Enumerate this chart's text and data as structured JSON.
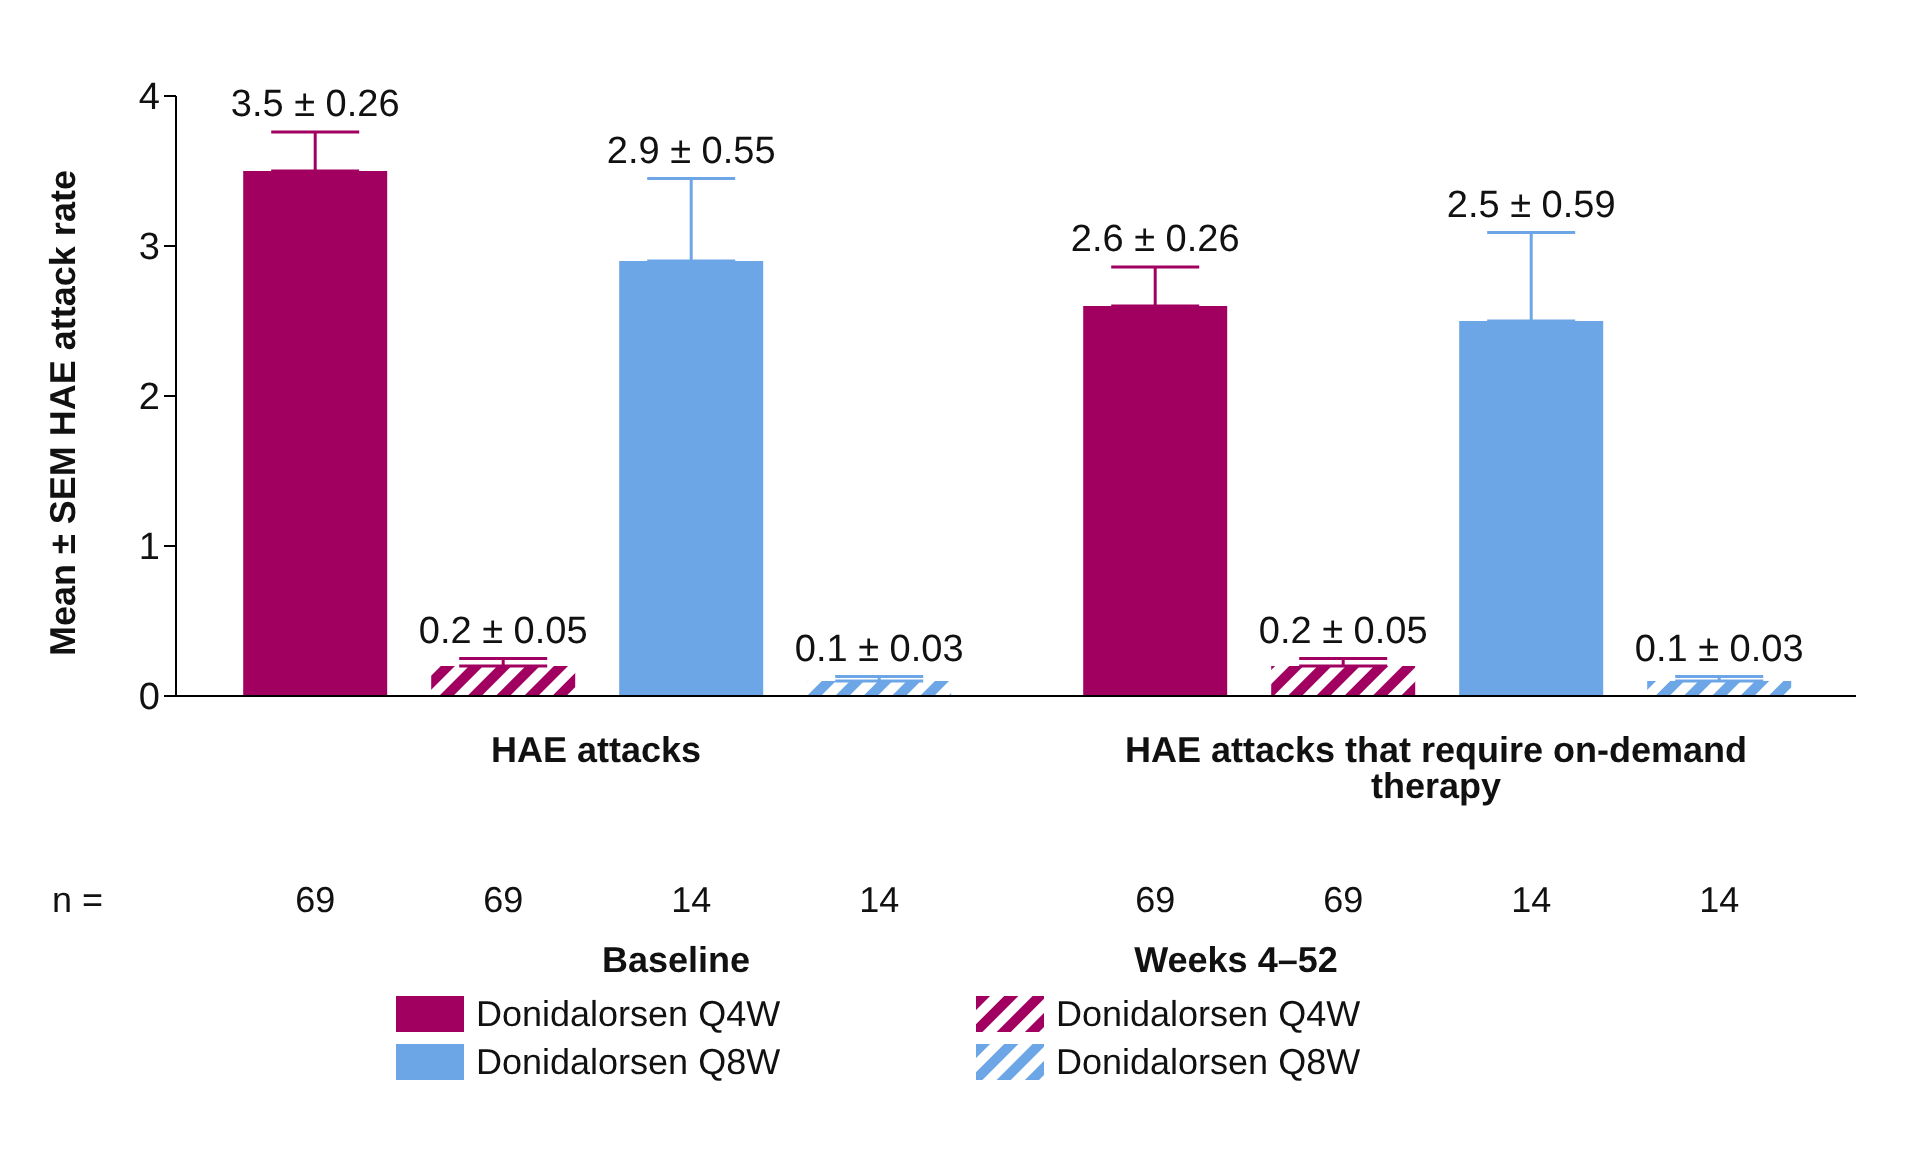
{
  "chart_data": {
    "type": "bar",
    "ylabel": "Mean ± SEM HAE attack rate",
    "categories": [
      "HAE attacks",
      "HAE attacks that require on-demand therapy"
    ],
    "series": [
      {
        "name": "Donidalorsen Q4W",
        "color": "#a10060",
        "values": [
          3.5,
          2.6
        ],
        "errors": [
          [
            3.5,
            3.76
          ],
          [
            2.6,
            2.86
          ]
        ],
        "value_labels": [
          "3.5 ± 0.26",
          "2.6 ± 0.26"
        ]
      },
      {
        "name": "Donidalorsen Q4W",
        "color": "#a10060",
        "values": [
          0.2,
          0.2
        ],
        "errors": [
          [
            0.2,
            0.25
          ],
          [
            0.2,
            0.25
          ]
        ],
        "value_labels": [
          "0.2 ± 0.05",
          "0.2 ± 0.05"
        ]
      },
      {
        "name": "Donidalorsen Q8W",
        "color": "#6ca6e6",
        "values": [
          2.9,
          2.5
        ],
        "errors": [
          [
            2.9,
            3.45
          ],
          [
            2.5,
            3.09
          ]
        ],
        "value_labels": [
          "2.9 ± 0.55",
          "2.5 ± 0.59"
        ]
      },
      {
        "name": "Donidalorsen Q8W",
        "color": "#6ca6e6",
        "values": [
          0.1,
          0.1
        ],
        "errors": [
          [
            0.1,
            0.13
          ],
          [
            0.1,
            0.13
          ]
        ],
        "value_labels": [
          "0.1 ± 0.03",
          "0.1 ± 0.03"
        ]
      }
    ],
    "ylim": [
      0,
      4
    ],
    "yticks": [
      0,
      1,
      2,
      3,
      4
    ],
    "legend": "bottom",
    "annotations": [
      "Baseline",
      "Weeks 4–52",
      "n =",
      "69",
      "69",
      "14",
      "14",
      "69",
      "69",
      "14",
      "14"
    ]
  }
}
